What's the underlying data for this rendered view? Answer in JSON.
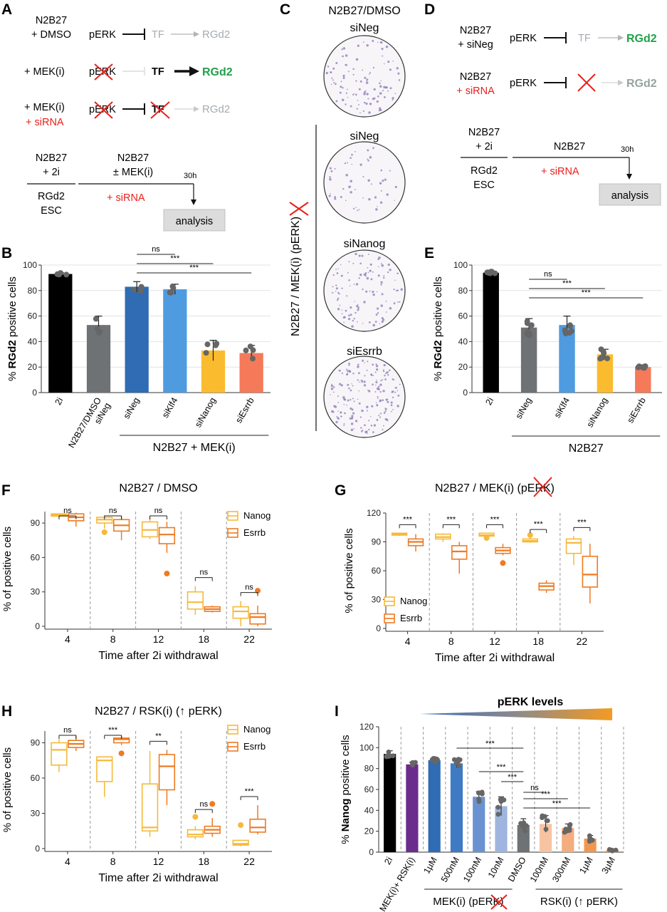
{
  "panel_letters": [
    "A",
    "B",
    "C",
    "D",
    "E",
    "F",
    "G",
    "H",
    "I"
  ],
  "colors": {
    "black": "#000000",
    "grey": "#6f7275",
    "blue_dark": "#2f6cb3",
    "blue_light": "#4f9be0",
    "yellow": "#fbbb2e",
    "salmon": "#f47a5a",
    "purple": "#6a2d8c",
    "nanog": "#f6b93b",
    "esrrb": "#ee7a22",
    "red": "#e8201b",
    "green": "#21a04a"
  },
  "panel_a": {
    "row1": {
      "cond_line1": "N2B27",
      "cond_line2": "+ DMSO",
      "perk": "pERK",
      "tf": "TF",
      "reporter": "RGd2"
    },
    "row2": {
      "cond": "+ MEK(i)",
      "perk": "pERK",
      "tf": "TF",
      "reporter": "RGd2"
    },
    "row3": {
      "cond": "+ MEK(i)",
      "sirna": "+ siRNA",
      "perk": "pERK",
      "tf": "TF",
      "reporter": "RGd2"
    },
    "timeline": {
      "left_top1": "N2B27",
      "left_top2": "+ 2i",
      "left_bot1": "RGd2",
      "left_bot2": "ESC",
      "mid_top1": "N2B27",
      "mid_top2": "± MEK(i)",
      "sirna": "+ siRNA",
      "time": "30h",
      "analysis": "analysis"
    }
  },
  "panel_c": {
    "title_top": "N2B27/DMSO",
    "side_label": "N2B27 / MEK(i) (pERK)",
    "wells": [
      "siNeg",
      "siNeg",
      "siNanog",
      "siEsrrb"
    ]
  },
  "panel_d": {
    "row1": {
      "cond_line1": "N2B27",
      "cond_line2": "+ siNeg",
      "perk": "pERK",
      "tf": "TF",
      "reporter": "RGd2"
    },
    "row2": {
      "cond_line1": "N2B27",
      "cond_line2": "+ siRNA",
      "perk": "pERK",
      "reporter": "RGd2"
    },
    "timeline": {
      "left_top1": "N2B27",
      "left_top2": "+ 2i",
      "left_bot1": "RGd2",
      "left_bot2": "ESC",
      "mid": "N2B27",
      "sirna": "+ siRNA",
      "time": "30h",
      "analysis": "analysis"
    }
  },
  "chart_data": [
    {
      "panel": "B",
      "type": "bar",
      "ylabel": "% RGd2 positive cells",
      "ylabel_prefix": "% ",
      "ylabel_bold": "RGd2",
      "ylabel_suffix": " positive cells",
      "ylim": [
        0,
        100
      ],
      "yticks": [
        0,
        20,
        40,
        60,
        80,
        100
      ],
      "categories": [
        "2i",
        "N2B27/DMSO siNeg",
        "siNeg",
        "siKlf4",
        "siNanog",
        "siEsrrb"
      ],
      "values": [
        93,
        53,
        83,
        81,
        33,
        31
      ],
      "errors": [
        1,
        7,
        4,
        4,
        8,
        6
      ],
      "group_label": "N2B27 + MEK(i)",
      "significance": [
        {
          "from": "siNeg",
          "to": "siKlf4",
          "label": "ns"
        },
        {
          "from": "siNeg",
          "to": "siNanog",
          "label": "***"
        },
        {
          "from": "siNeg",
          "to": "siEsrrb",
          "label": "***"
        }
      ]
    },
    {
      "panel": "E",
      "type": "bar",
      "ylabel": "% RGd2 positive cells",
      "ylabel_prefix": "% ",
      "ylabel_bold": "RGd2",
      "ylabel_suffix": " positive cells",
      "ylim": [
        0,
        100
      ],
      "yticks": [
        0,
        20,
        40,
        60,
        80,
        100
      ],
      "categories": [
        "2i",
        "siNeg",
        "siKlf4",
        "siNanog",
        "siEsrrb"
      ],
      "values": [
        94,
        51,
        53,
        30,
        20
      ],
      "errors": [
        1,
        7,
        7,
        4,
        1
      ],
      "group_label": "N2B27",
      "significance": [
        {
          "from": "siNeg",
          "to": "siKlf4",
          "label": "ns"
        },
        {
          "from": "siNeg",
          "to": "siNanog",
          "label": "***"
        },
        {
          "from": "siNeg",
          "to": "siEsrrb",
          "label": "***"
        }
      ]
    },
    {
      "panel": "F",
      "type": "box",
      "title": "N2B27 / DMSO",
      "xlabel": "Time after 2i withdrawal",
      "ylabel": "% of positive cells",
      "ylim": [
        0,
        100
      ],
      "yticks": [
        0,
        30,
        60,
        90
      ],
      "categories": [
        "4",
        "8",
        "12",
        "18",
        "22"
      ],
      "legend": [
        "Nanog",
        "Esrrb"
      ],
      "series": [
        {
          "name": "Nanog",
          "boxes": [
            {
              "min": 95,
              "q1": 96,
              "med": 97,
              "q3": 98,
              "max": 98
            },
            {
              "min": 85,
              "q1": 90,
              "med": 93,
              "q3": 95,
              "max": 97
            },
            {
              "min": 76,
              "q1": 78,
              "med": 84,
              "q3": 91,
              "max": 96
            },
            {
              "min": 10,
              "q1": 15,
              "med": 21,
              "q3": 30,
              "max": 35
            },
            {
              "min": 0,
              "q1": 7,
              "med": 13,
              "q3": 17,
              "max": 22
            }
          ],
          "outliers": [
            [],
            [
              82
            ],
            [],
            [],
            []
          ]
        },
        {
          "name": "Esrrb",
          "boxes": [
            {
              "min": 87,
              "q1": 92,
              "med": 95,
              "q3": 98,
              "max": 99
            },
            {
              "min": 75,
              "q1": 83,
              "med": 88,
              "q3": 93,
              "max": 96
            },
            {
              "min": 64,
              "q1": 72,
              "med": 80,
              "q3": 86,
              "max": 91
            },
            {
              "min": 12,
              "q1": 13,
              "med": 15,
              "q3": 17,
              "max": 18
            },
            {
              "min": 0,
              "q1": 2,
              "med": 8,
              "q3": 11,
              "max": 18
            }
          ],
          "outliers": [
            [],
            [],
            [
              46
            ],
            [],
            [
              31
            ]
          ]
        }
      ],
      "significance": [
        "ns",
        "ns",
        "ns",
        "ns",
        "ns"
      ]
    },
    {
      "panel": "G",
      "type": "box",
      "title": "N2B27 / MEK(i) (pERK)",
      "xlabel": "Time after 2i withdrawal",
      "ylabel": "% of positive cells",
      "ylim": [
        0,
        120
      ],
      "yticks": [
        0,
        30,
        60,
        90,
        120
      ],
      "categories": [
        "4",
        "8",
        "12",
        "18",
        "22"
      ],
      "legend": [
        "Nanog",
        "Esrrb"
      ],
      "series": [
        {
          "name": "Nanog",
          "boxes": [
            {
              "min": 96,
              "q1": 97,
              "med": 98,
              "q3": 99,
              "max": 99
            },
            {
              "min": 90,
              "q1": 93,
              "med": 95,
              "q3": 98,
              "max": 99
            },
            {
              "min": 95,
              "q1": 96,
              "med": 97,
              "q3": 99,
              "max": 99
            },
            {
              "min": 89,
              "q1": 90,
              "med": 91,
              "q3": 93,
              "max": 94
            },
            {
              "min": 66,
              "q1": 78,
              "med": 89,
              "q3": 93,
              "max": 96
            }
          ],
          "outliers": [
            [],
            [],
            [
              94
            ],
            [
              97
            ],
            []
          ]
        },
        {
          "name": "Esrrb",
          "boxes": [
            {
              "min": 80,
              "q1": 86,
              "med": 90,
              "q3": 93,
              "max": 98
            },
            {
              "min": 57,
              "q1": 72,
              "med": 80,
              "q3": 86,
              "max": 90
            },
            {
              "min": 76,
              "q1": 78,
              "med": 81,
              "q3": 84,
              "max": 88
            },
            {
              "min": 37,
              "q1": 40,
              "med": 44,
              "q3": 47,
              "max": 50
            },
            {
              "min": 26,
              "q1": 43,
              "med": 56,
              "q3": 75,
              "max": 88
            }
          ],
          "outliers": [
            [],
            [],
            [
              68
            ],
            [],
            []
          ]
        }
      ],
      "significance": [
        "***",
        "***",
        "***",
        "***",
        "***"
      ]
    },
    {
      "panel": "H",
      "type": "box",
      "title": "N2B27 / RSK(i) (↑ pERK)",
      "xlabel": "Time after 2i withdrawal",
      "ylabel": "% of positive cells",
      "ylim": [
        0,
        100
      ],
      "yticks": [
        0,
        30,
        60,
        90
      ],
      "categories": [
        "4",
        "8",
        "12",
        "18",
        "22"
      ],
      "legend": [
        "Nanog",
        "Esrrb"
      ],
      "series": [
        {
          "name": "Nanog",
          "boxes": [
            {
              "min": 65,
              "q1": 71,
              "med": 84,
              "q3": 90,
              "max": 93
            },
            {
              "min": 44,
              "q1": 57,
              "med": 75,
              "q3": 78,
              "max": 78
            },
            {
              "min": 10,
              "q1": 15,
              "med": 18,
              "q3": 55,
              "max": 83
            },
            {
              "min": 8,
              "q1": 10,
              "med": 12,
              "q3": 16,
              "max": 19
            },
            {
              "min": 2,
              "q1": 3,
              "med": 4,
              "q3": 7,
              "max": 7
            }
          ],
          "outliers": [
            [],
            [],
            [],
            [
              27
            ],
            [
              20
            ]
          ]
        },
        {
          "name": "Esrrb",
          "boxes": [
            {
              "min": 83,
              "q1": 86,
              "med": 89,
              "q3": 92,
              "max": 96
            },
            {
              "min": 88,
              "q1": 90,
              "med": 93,
              "q3": 94,
              "max": 96
            },
            {
              "min": 37,
              "q1": 50,
              "med": 70,
              "q3": 80,
              "max": 84
            },
            {
              "min": 10,
              "q1": 13,
              "med": 16,
              "q3": 19,
              "max": 26
            },
            {
              "min": 12,
              "q1": 14,
              "med": 18,
              "q3": 25,
              "max": 37
            }
          ],
          "outliers": [
            [],
            [
              81
            ],
            [],
            [
              38
            ],
            []
          ]
        }
      ],
      "significance": [
        "ns",
        "***",
        "**",
        "ns",
        "***"
      ]
    },
    {
      "panel": "I",
      "type": "bar",
      "ylabel": "% Nanog positive cells",
      "ylabel_prefix": "% ",
      "ylabel_bold": "Nanog",
      "ylabel_suffix": " positive cells",
      "ylim": [
        0,
        120
      ],
      "yticks": [
        0,
        20,
        40,
        60,
        80,
        100,
        120
      ],
      "categories": [
        "2i",
        "MEK(i)+ RSK(i)",
        "1µM",
        "500nM",
        "100nM",
        "10nM",
        "DMSO",
        "100nM",
        "300nM",
        "1µM",
        "3µM"
      ],
      "values": [
        94,
        84,
        88,
        85,
        53,
        44,
        26,
        27,
        23,
        13,
        2
      ],
      "errors": [
        3,
        2,
        2,
        4,
        5,
        9,
        6,
        8,
        4,
        3,
        1
      ],
      "colors": [
        "#000000",
        "#6a2d8c",
        "#2f6cb3",
        "#3f7bc4",
        "#6b92d0",
        "#9fb5df",
        "#6f7275",
        "#f6c4a2",
        "#f4ad7e",
        "#f19650",
        "#f18a32"
      ],
      "gradient_title": "pERK levels",
      "group_labels": [
        "MEK(i) (pERK)",
        "RSK(i) (↑ pERK)"
      ],
      "significance": [
        {
          "from": "500nM",
          "to": "DMSO",
          "label": "***"
        },
        {
          "from": "100nM",
          "to": "DMSO",
          "label": "***"
        },
        {
          "from": "10nM",
          "to": "DMSO",
          "label": "***"
        },
        {
          "from": "DMSO",
          "to": "100nM",
          "label": "ns"
        },
        {
          "from": "DMSO",
          "to": "300nM",
          "label": "***"
        },
        {
          "from": "DMSO",
          "to": "1µM",
          "label": "***"
        }
      ]
    }
  ]
}
